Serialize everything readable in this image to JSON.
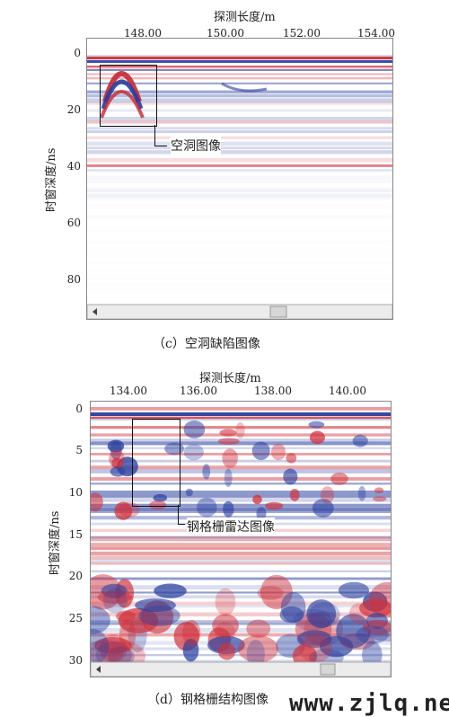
{
  "panel_c": {
    "x_axis_title": "探测长度/m",
    "x_ticks": [
      "148.00",
      "150.00",
      "152.00",
      "154.00"
    ],
    "y_axis_title": "时窗深度/ns",
    "y_ticks": [
      "0",
      "20",
      "40",
      "60",
      "80"
    ],
    "annotation": "空洞图像",
    "caption": "（c）空洞缺陷图像"
  },
  "panel_d": {
    "x_axis_title": "探测长度/m",
    "x_ticks": [
      "134.00",
      "136.00",
      "138.00",
      "140.00"
    ],
    "y_axis_title": "时窗深度/ns",
    "y_ticks": [
      "0",
      "5",
      "10",
      "15",
      "20",
      "25",
      "30"
    ],
    "annotation": "钢格栅雷达图像",
    "caption": "（d）钢格栅结构图像"
  },
  "watermark": "www.zjlq.net",
  "colors": {
    "red": "#d0303a",
    "blue": "#2a3f9e",
    "background": "#ffffff"
  }
}
